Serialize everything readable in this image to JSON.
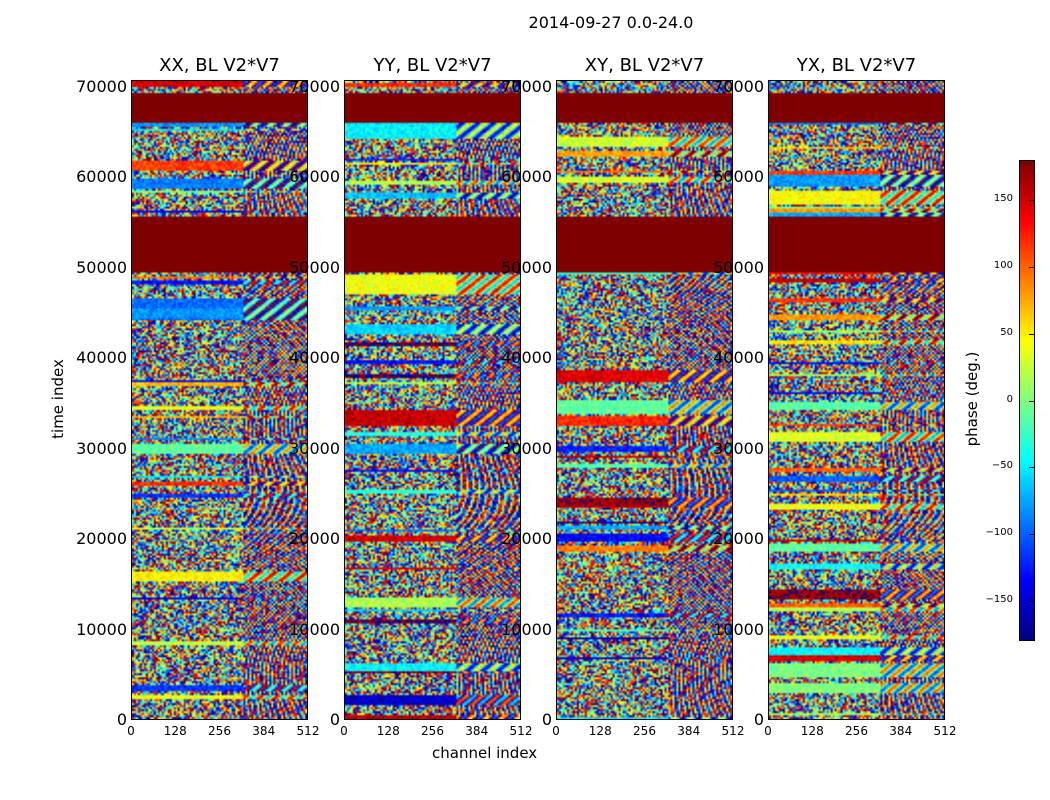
{
  "chart_data": {
    "type": "heatmap",
    "title": "2014-09-27 0.0-24.0",
    "xlabel": "channel index",
    "ylabel": "time index",
    "xlim": [
      0,
      512
    ],
    "ylim": [
      0,
      71000
    ],
    "x_ticks": [
      "0",
      "128",
      "256",
      "384",
      "512"
    ],
    "y_ticks": [
      "0",
      "10000",
      "20000",
      "30000",
      "40000",
      "50000",
      "60000",
      "70000"
    ],
    "panels": [
      {
        "title": "XX, BL V2*V7"
      },
      {
        "title": "YY, BL V2*V7"
      },
      {
        "title": "XY, BL V2*V7"
      },
      {
        "title": "YX, BL V2*V7"
      }
    ],
    "flagged_time_ranges": [
      [
        66200,
        69450
      ],
      [
        49750,
        55850
      ]
    ],
    "colorbar": {
      "label": "phase (deg.)",
      "range": [
        -180,
        180
      ],
      "ticks": [
        "−150",
        "−100",
        "−50",
        "0",
        "50",
        "100",
        "150"
      ],
      "tick_values": [
        -150,
        -100,
        -50,
        0,
        50,
        100,
        150
      ],
      "colormap": "jet"
    }
  }
}
